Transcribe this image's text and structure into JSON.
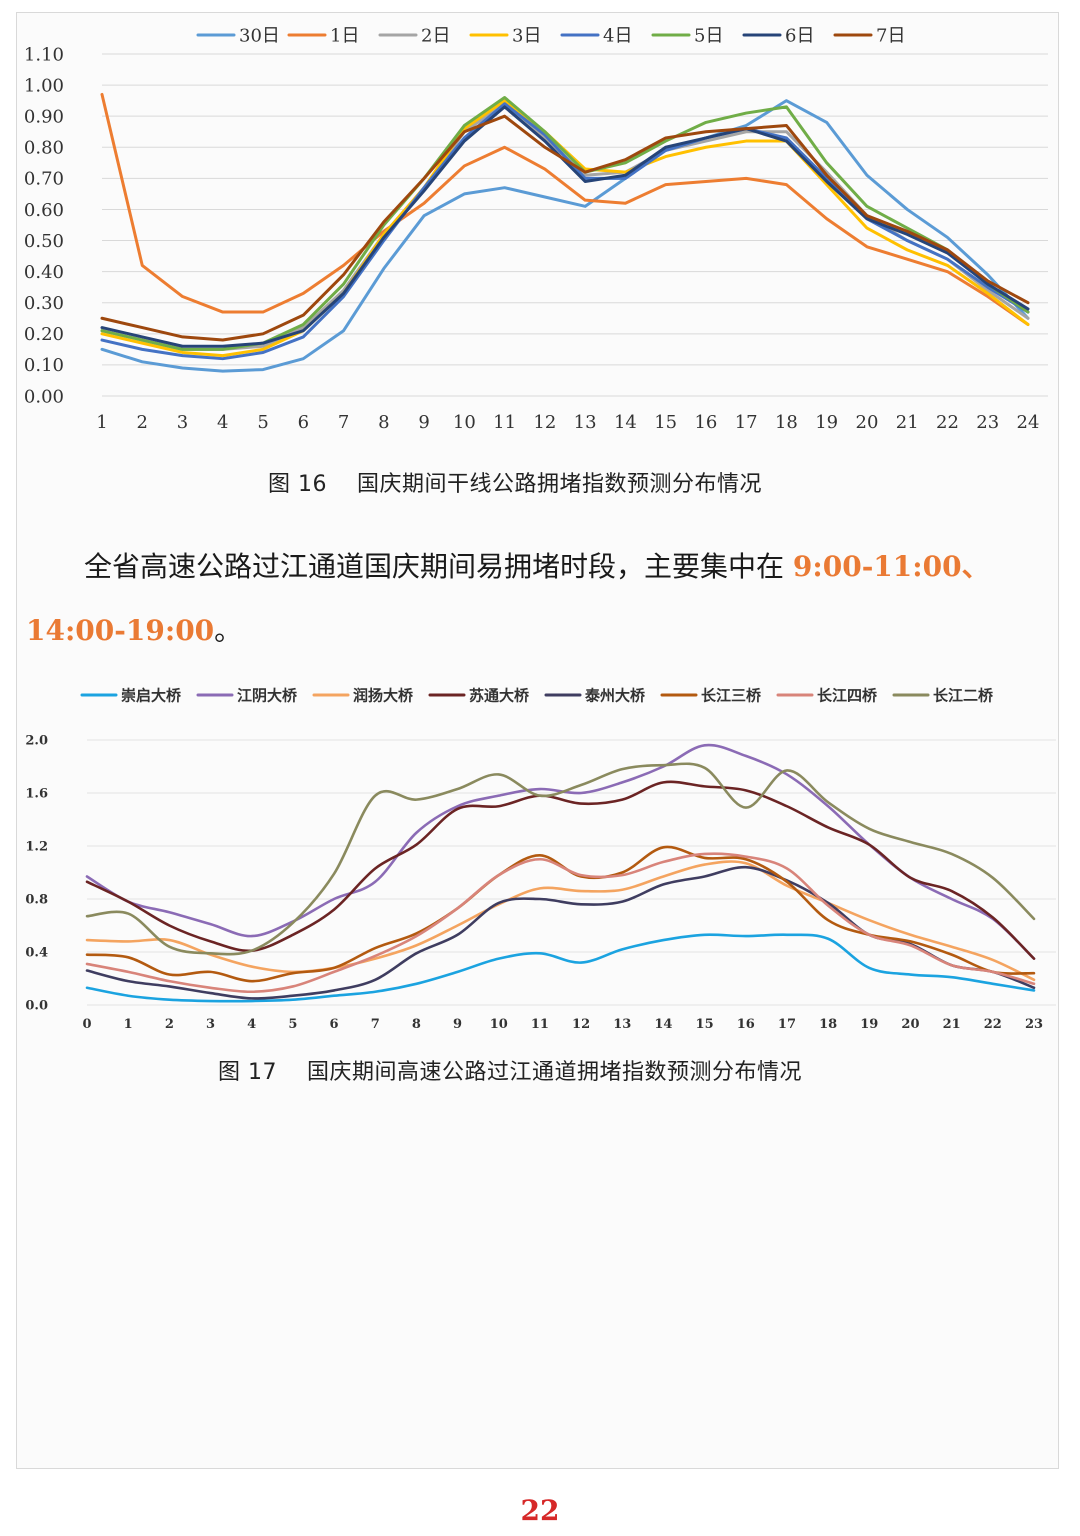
{
  "chart_data": [
    {
      "type": "line",
      "categories": [
        "1",
        "2",
        "3",
        "4",
        "5",
        "6",
        "7",
        "8",
        "9",
        "10",
        "11",
        "12",
        "13",
        "14",
        "15",
        "16",
        "17",
        "18",
        "19",
        "20",
        "21",
        "22",
        "23",
        "24"
      ],
      "y_ticks": [
        "0.00",
        "0.10",
        "0.20",
        "0.30",
        "0.40",
        "0.50",
        "0.60",
        "0.70",
        "0.80",
        "0.90",
        "1.00",
        "1.10"
      ],
      "ylim": [
        0,
        1.1
      ],
      "grid": true,
      "legend_position": "top",
      "series": [
        {
          "name": "30日",
          "color": "#5b9bd5",
          "values": [
            0.15,
            0.11,
            0.09,
            0.08,
            0.085,
            0.12,
            0.21,
            0.41,
            0.58,
            0.65,
            0.67,
            0.64,
            0.61,
            0.7,
            0.79,
            0.83,
            0.87,
            0.95,
            0.88,
            0.71,
            0.6,
            0.51,
            0.39,
            0.25
          ]
        },
        {
          "name": "1日",
          "color": "#ed7d31",
          "values": [
            0.97,
            0.42,
            0.32,
            0.27,
            0.27,
            0.33,
            0.42,
            0.53,
            0.62,
            0.74,
            0.8,
            0.73,
            0.63,
            0.62,
            0.68,
            0.69,
            0.7,
            0.68,
            0.57,
            0.48,
            0.44,
            0.4,
            0.32,
            0.23
          ]
        },
        {
          "name": "2日",
          "color": "#a5a5a5",
          "values": [
            0.21,
            0.18,
            0.15,
            0.15,
            0.16,
            0.22,
            0.34,
            0.52,
            0.67,
            0.85,
            0.94,
            0.83,
            0.71,
            0.72,
            0.79,
            0.82,
            0.85,
            0.85,
            0.72,
            0.58,
            0.5,
            0.44,
            0.34,
            0.25
          ]
        },
        {
          "name": "3日",
          "color": "#ffc000",
          "values": [
            0.2,
            0.17,
            0.14,
            0.13,
            0.15,
            0.21,
            0.33,
            0.52,
            0.67,
            0.86,
            0.95,
            0.85,
            0.73,
            0.72,
            0.77,
            0.8,
            0.82,
            0.82,
            0.68,
            0.54,
            0.47,
            0.42,
            0.33,
            0.23
          ]
        },
        {
          "name": "4日",
          "color": "#4472c4",
          "values": [
            0.18,
            0.15,
            0.13,
            0.12,
            0.14,
            0.19,
            0.32,
            0.5,
            0.67,
            0.83,
            0.94,
            0.84,
            0.7,
            0.7,
            0.79,
            0.83,
            0.86,
            0.83,
            0.7,
            0.57,
            0.5,
            0.44,
            0.35,
            0.27
          ]
        },
        {
          "name": "5日",
          "color": "#70ad47",
          "values": [
            0.21,
            0.18,
            0.15,
            0.15,
            0.17,
            0.23,
            0.36,
            0.55,
            0.7,
            0.87,
            0.96,
            0.85,
            0.72,
            0.75,
            0.82,
            0.88,
            0.91,
            0.93,
            0.75,
            0.61,
            0.54,
            0.47,
            0.36,
            0.27
          ]
        },
        {
          "name": "6日",
          "color": "#264478",
          "values": [
            0.22,
            0.19,
            0.16,
            0.16,
            0.17,
            0.21,
            0.33,
            0.51,
            0.66,
            0.82,
            0.93,
            0.82,
            0.69,
            0.71,
            0.8,
            0.83,
            0.86,
            0.82,
            0.69,
            0.57,
            0.52,
            0.46,
            0.36,
            0.28
          ]
        },
        {
          "name": "7日",
          "color": "#9e480e",
          "values": [
            0.25,
            0.22,
            0.19,
            0.18,
            0.2,
            0.26,
            0.39,
            0.56,
            0.7,
            0.85,
            0.9,
            0.8,
            0.72,
            0.76,
            0.83,
            0.85,
            0.86,
            0.87,
            0.71,
            0.58,
            0.53,
            0.47,
            0.37,
            0.3
          ]
        }
      ]
    },
    {
      "type": "line",
      "categories": [
        "0",
        "1",
        "2",
        "3",
        "4",
        "5",
        "6",
        "7",
        "8",
        "9",
        "10",
        "11",
        "12",
        "13",
        "14",
        "15",
        "16",
        "17",
        "18",
        "19",
        "20",
        "21",
        "22",
        "23"
      ],
      "y_ticks": [
        "0.0",
        "0.4",
        "0.8",
        "1.2",
        "1.6",
        "2.0"
      ],
      "ylim": [
        0,
        2.0
      ],
      "grid": true,
      "legend_position": "top",
      "series": [
        {
          "name": "崇启大桥",
          "color": "#1ba3e0",
          "values": [
            0.13,
            0.07,
            0.04,
            0.03,
            0.03,
            0.04,
            0.07,
            0.1,
            0.16,
            0.25,
            0.35,
            0.39,
            0.32,
            0.42,
            0.49,
            0.53,
            0.52,
            0.53,
            0.5,
            0.28,
            0.23,
            0.21,
            0.16,
            0.11
          ]
        },
        {
          "name": "江阴大桥",
          "color": "#8b6bb5",
          "values": [
            0.97,
            0.78,
            0.7,
            0.61,
            0.52,
            0.63,
            0.8,
            0.93,
            1.3,
            1.5,
            1.58,
            1.63,
            1.6,
            1.68,
            1.8,
            1.96,
            1.88,
            1.74,
            1.5,
            1.21,
            0.96,
            0.8,
            0.65,
            0.35
          ]
        },
        {
          "name": "润扬大桥",
          "color": "#f4a460",
          "values": [
            0.49,
            0.48,
            0.49,
            0.38,
            0.29,
            0.25,
            0.28,
            0.35,
            0.45,
            0.6,
            0.76,
            0.88,
            0.86,
            0.87,
            0.97,
            1.06,
            1.07,
            0.9,
            0.77,
            0.64,
            0.53,
            0.44,
            0.34,
            0.19
          ]
        },
        {
          "name": "苏通大桥",
          "color": "#6b2424",
          "values": [
            0.93,
            0.78,
            0.6,
            0.48,
            0.41,
            0.53,
            0.72,
            1.03,
            1.21,
            1.48,
            1.5,
            1.58,
            1.52,
            1.55,
            1.68,
            1.65,
            1.62,
            1.5,
            1.34,
            1.21,
            0.96,
            0.86,
            0.66,
            0.35
          ]
        },
        {
          "name": "泰州大桥",
          "color": "#3f3d60",
          "values": [
            0.26,
            0.18,
            0.14,
            0.09,
            0.05,
            0.07,
            0.11,
            0.19,
            0.39,
            0.53,
            0.77,
            0.8,
            0.76,
            0.78,
            0.91,
            0.97,
            1.04,
            0.94,
            0.77,
            0.53,
            0.46,
            0.3,
            0.25,
            0.13
          ]
        },
        {
          "name": "长江三桥",
          "color": "#b35a10",
          "values": [
            0.38,
            0.36,
            0.23,
            0.25,
            0.18,
            0.24,
            0.28,
            0.43,
            0.54,
            0.73,
            0.98,
            1.13,
            0.97,
            1.0,
            1.19,
            1.11,
            1.1,
            0.93,
            0.64,
            0.53,
            0.48,
            0.38,
            0.25,
            0.24
          ]
        },
        {
          "name": "长江四桥",
          "color": "#d8847a",
          "values": [
            0.31,
            0.25,
            0.18,
            0.13,
            0.1,
            0.14,
            0.25,
            0.37,
            0.52,
            0.73,
            0.98,
            1.1,
            0.98,
            0.98,
            1.08,
            1.14,
            1.12,
            1.03,
            0.75,
            0.53,
            0.45,
            0.3,
            0.25,
            0.16
          ]
        },
        {
          "name": "长江二桥",
          "color": "#8a8a5e",
          "values": [
            0.67,
            0.69,
            0.44,
            0.39,
            0.41,
            0.62,
            0.99,
            1.58,
            1.55,
            1.63,
            1.74,
            1.58,
            1.66,
            1.78,
            1.81,
            1.79,
            1.49,
            1.77,
            1.53,
            1.33,
            1.23,
            1.14,
            0.96,
            0.65
          ]
        }
      ]
    }
  ],
  "captions": {
    "fig16": "图 16    国庆期间干线公路拥堵指数预测分布情况",
    "fig17": "图 17    国庆期间高速公路过江通道拥堵指数预测分布情况"
  },
  "paragraph": {
    "line1_text": "全省高速公路过江通道国庆期间易拥堵时段，主要集中在 ",
    "highlight1": "9:00-11:00、",
    "highlight2": "14:00-19:00",
    "line2_tail": "。"
  },
  "page_number": "22"
}
